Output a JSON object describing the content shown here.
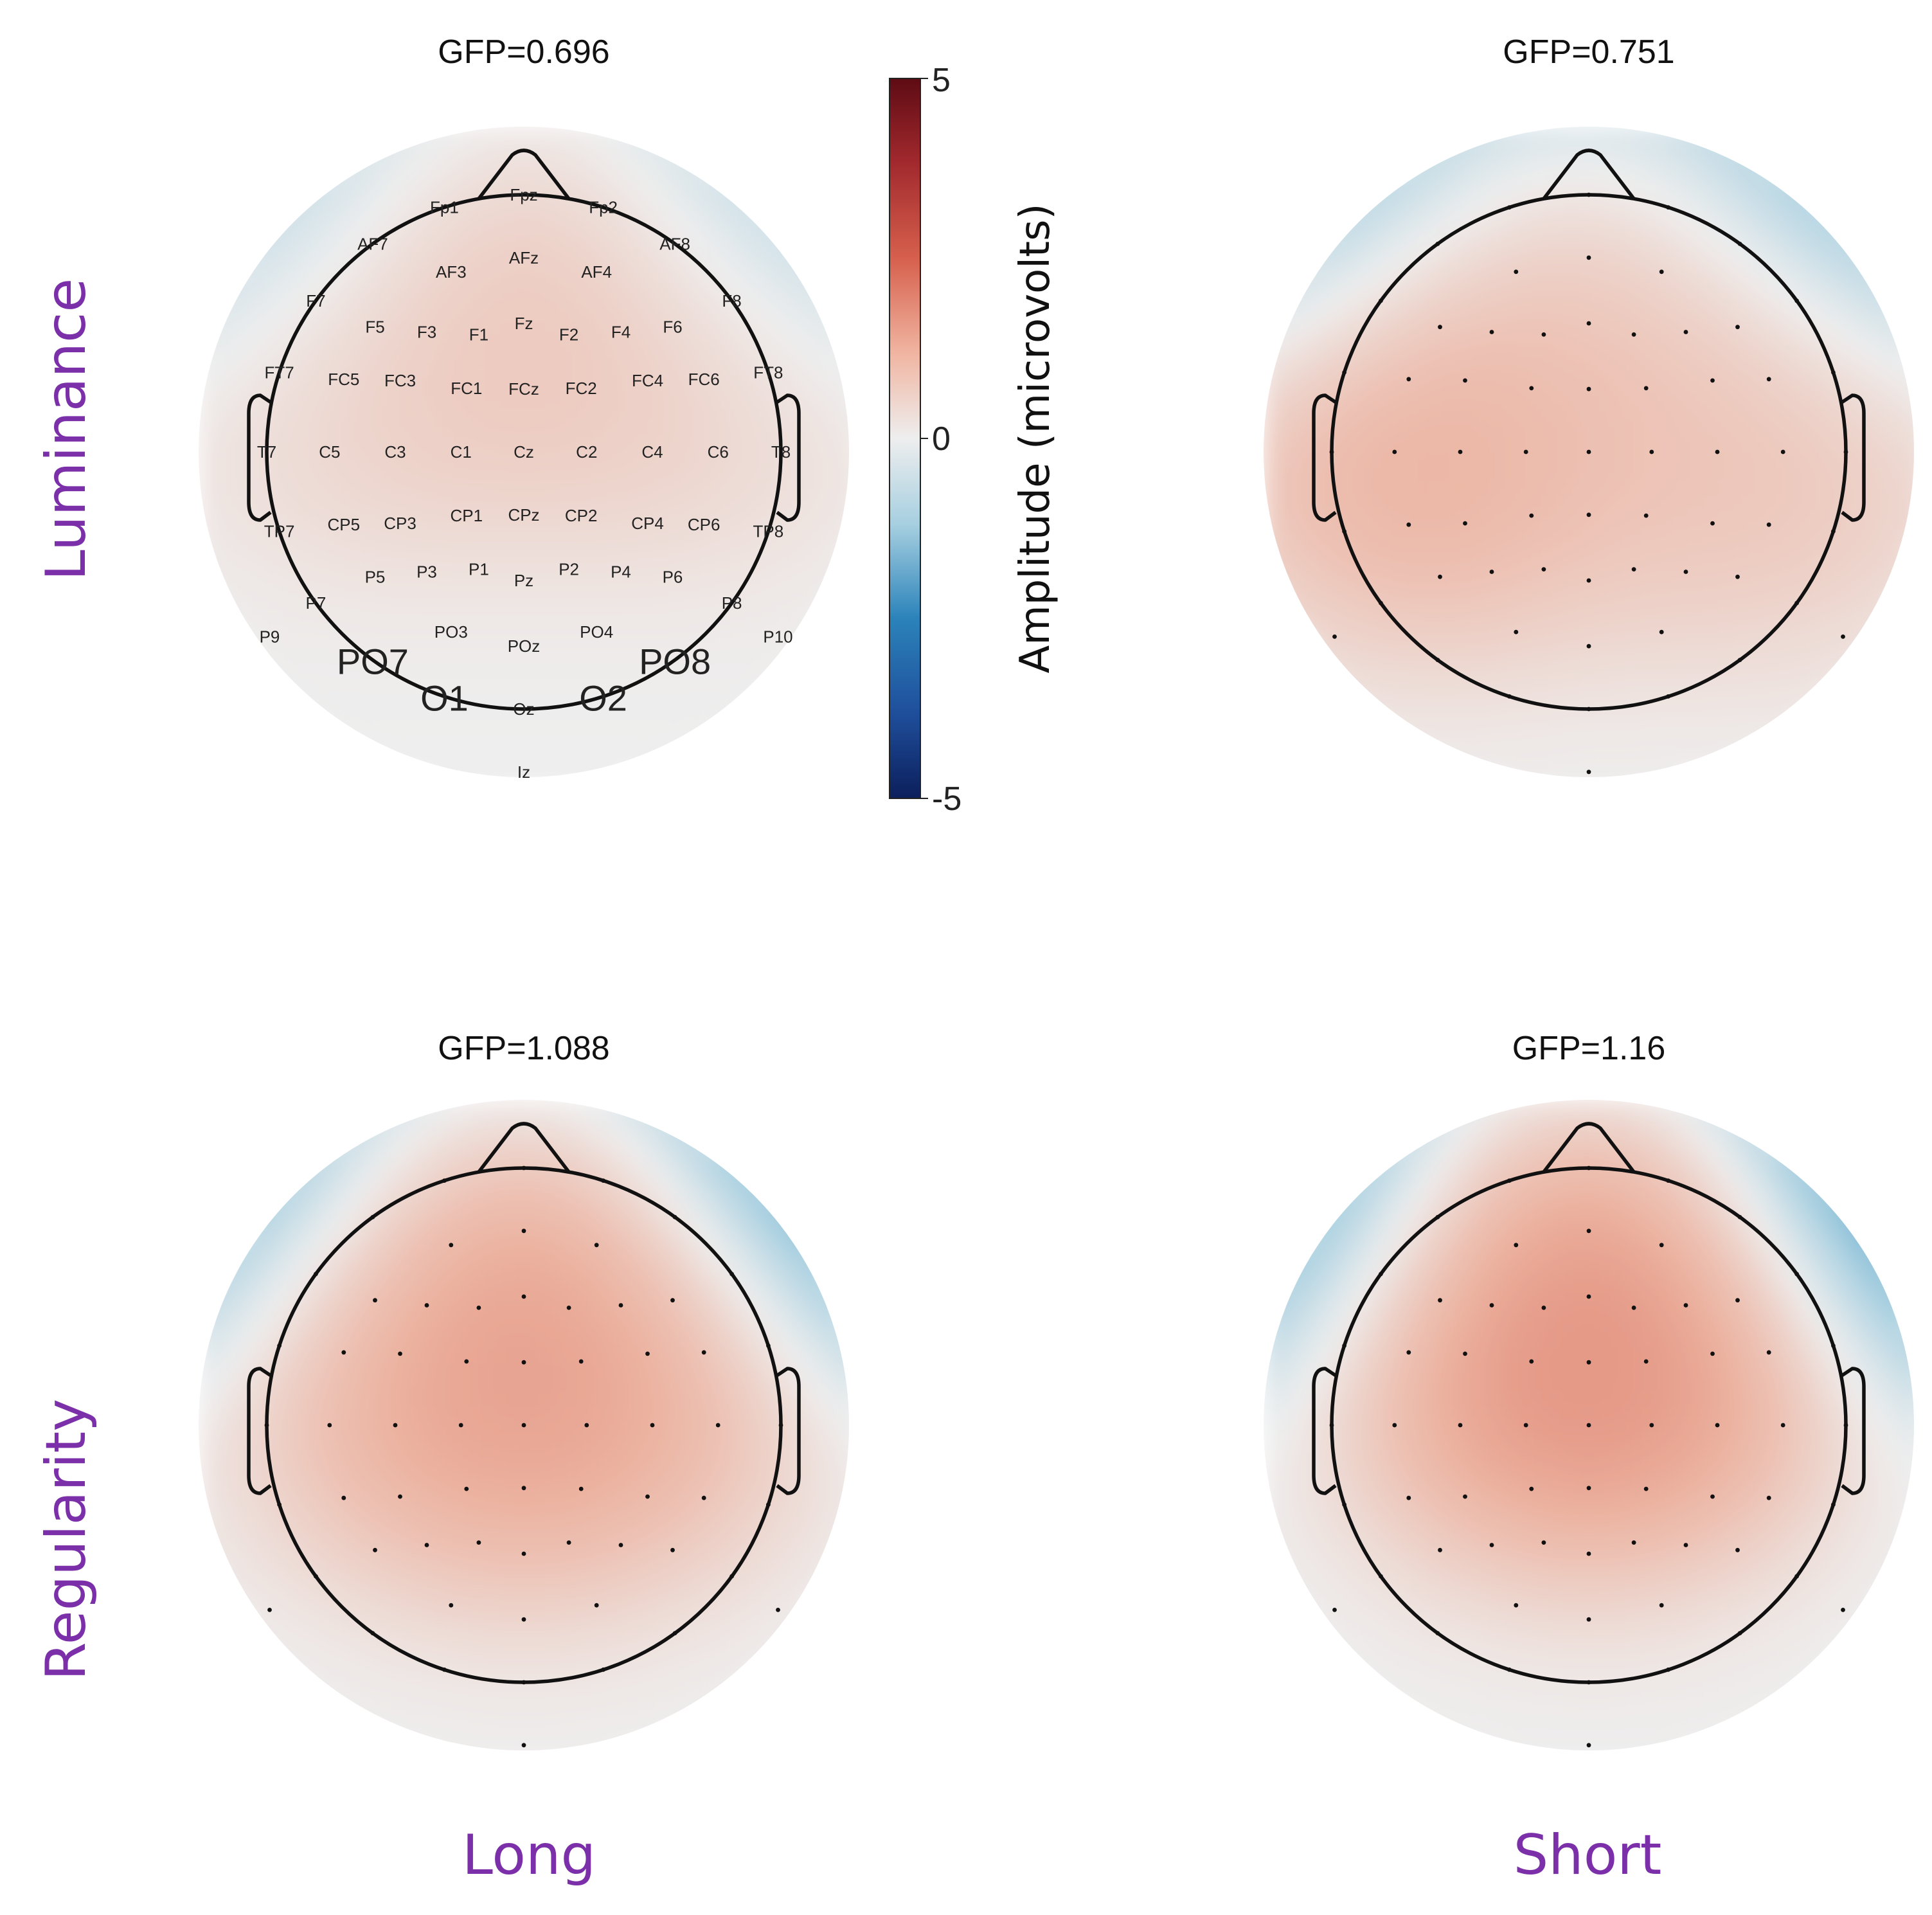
{
  "chart_data": {
    "type": "heatmap",
    "subtype": "EEG scalp topography (2x2 grid)",
    "rows": [
      "Luminance",
      "Regularity"
    ],
    "columns": [
      "Long",
      "Short"
    ],
    "colorbar": {
      "title": "Amplitude (microvolts)",
      "min": -5,
      "max": 5,
      "ticks": [
        "5",
        "0",
        "-5"
      ],
      "colormap": "diverging blue-white-red",
      "colors": {
        "neg": "#0c1f5c",
        "mid": "#eeeeee",
        "pos": "#5e0b14"
      }
    },
    "electrode_labels": {
      "Fpz": "Fpz",
      "Fp1": "Fp1",
      "Fp2": "Fp2",
      "AF7": "AF7",
      "AF3": "AF3",
      "AFz": "AFz",
      "AF4": "AF4",
      "AF8": "AF8",
      "F7": "F7",
      "F5": "F5",
      "F3": "F3",
      "F1": "F1",
      "Fz": "Fz",
      "F2": "F2",
      "F4": "F4",
      "F6": "F6",
      "F8": "F8",
      "FT7": "FT7",
      "FC5": "FC5",
      "FC3": "FC3",
      "FC1": "FC1",
      "FCz": "FCz",
      "FC2": "FC2",
      "FC4": "FC4",
      "FC6": "FC6",
      "FT8": "FT8",
      "T7": "T7",
      "C5": "C5",
      "C3": "C3",
      "C1": "C1",
      "Cz": "Cz",
      "C2": "C2",
      "C4": "C4",
      "C6": "C6",
      "T8": "T8",
      "TP7": "TP7",
      "CP5": "CP5",
      "CP3": "CP3",
      "CP1": "CP1",
      "CPz": "CPz",
      "CP2": "CP2",
      "CP4": "CP4",
      "CP6": "CP6",
      "TP8": "TP8",
      "P9": "P9",
      "P7": "P7",
      "P5": "P5",
      "P3": "P3",
      "P1": "P1",
      "Pz": "Pz",
      "P2": "P2",
      "P4": "P4",
      "P6": "P6",
      "P8": "P8",
      "P10": "P10",
      "PO7": "PO7",
      "PO3": "PO3",
      "POz": "POz",
      "PO4": "PO4",
      "PO8": "PO8",
      "O1": "O1",
      "Oz": "Oz",
      "O2": "O2",
      "Iz": "Iz"
    },
    "highlighted_electrodes": [
      "PO7",
      "PO8",
      "O1",
      "O2"
    ],
    "panels": [
      {
        "row": "Luminance",
        "column": "Long",
        "gfp": "GFP=0.696",
        "show_labels": true,
        "peaks": [
          {
            "lon": 0,
            "lat": 10,
            "value": 1.0
          },
          {
            "lon": -45,
            "lat": 14,
            "value": 0.8
          },
          {
            "lon": 45,
            "lat": 14,
            "value": 0.8
          },
          {
            "lon": -40,
            "lat": -52,
            "value": -1.9
          },
          {
            "lon": 40,
            "lat": -52,
            "value": -1.9
          },
          {
            "lon": 0,
            "lat": -70,
            "value": -0.7
          }
        ]
      },
      {
        "row": "Luminance",
        "column": "Short",
        "gfp": "GFP=0.751",
        "show_labels": false,
        "peaks": [
          {
            "lon": -72,
            "lat": 30,
            "value": 1.5
          },
          {
            "lon": 72,
            "lat": 30,
            "value": 1.0
          },
          {
            "lon": 0,
            "lat": 45,
            "value": 0.7
          },
          {
            "lon": -45,
            "lat": -55,
            "value": -1.9
          },
          {
            "lon": 45,
            "lat": -55,
            "value": -2.1
          },
          {
            "lon": 0,
            "lat": -70,
            "value": -0.8
          }
        ]
      },
      {
        "row": "Regularity",
        "column": "Long",
        "gfp": "GFP=1.088",
        "show_labels": false,
        "peaks": [
          {
            "lon": 0,
            "lat": 60,
            "value": 1.6
          },
          {
            "lon": -35,
            "lat": 30,
            "value": 1.3
          },
          {
            "lon": 35,
            "lat": 30,
            "value": 1.3
          },
          {
            "lon": -45,
            "lat": -58,
            "value": -2.6
          },
          {
            "lon": 45,
            "lat": -58,
            "value": -3.3
          },
          {
            "lon": 0,
            "lat": -70,
            "value": -0.8
          }
        ]
      },
      {
        "row": "Regularity",
        "column": "Short",
        "gfp": "GFP=1.16",
        "show_labels": false,
        "peaks": [
          {
            "lon": 0,
            "lat": 50,
            "value": 2.0
          },
          {
            "lon": -20,
            "lat": 30,
            "value": 1.3
          },
          {
            "lon": 20,
            "lat": 30,
            "value": 1.3
          },
          {
            "lon": -45,
            "lat": -58,
            "value": -2.8
          },
          {
            "lon": 45,
            "lat": -58,
            "value": -3.5
          },
          {
            "lon": 0,
            "lat": -75,
            "value": -1.2
          }
        ]
      }
    ]
  }
}
